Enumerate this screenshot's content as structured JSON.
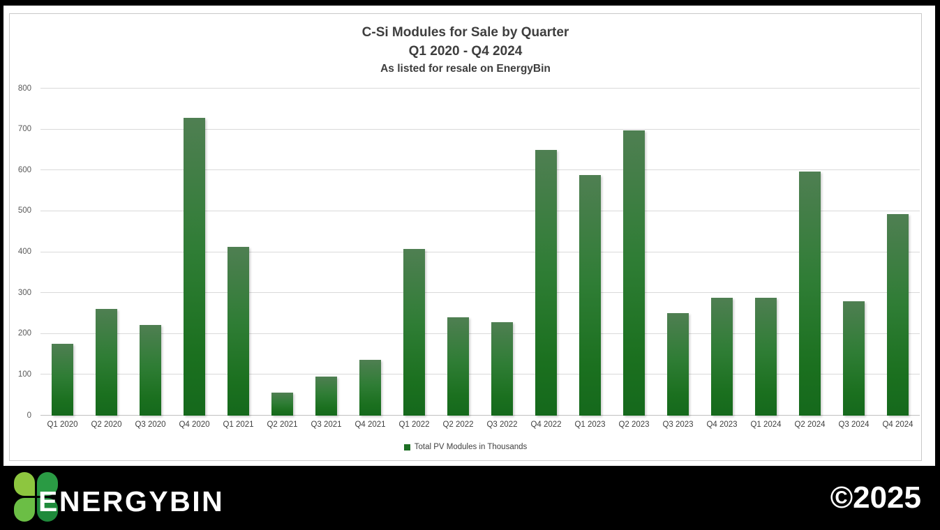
{
  "chart_data": {
    "type": "bar",
    "title": "C-Si Modules for Sale by Quarter",
    "subtitle": "Q1 2020 - Q4 2024",
    "subtitle2": "As listed for resale on EnergyBin",
    "categories": [
      "Q1 2020",
      "Q2 2020",
      "Q3 2020",
      "Q4 2020",
      "Q1 2021",
      "Q2 2021",
      "Q3 2021",
      "Q4 2021",
      "Q1 2022",
      "Q2 2022",
      "Q3 2022",
      "Q4 2022",
      "Q1 2023",
      "Q2 2023",
      "Q3 2023",
      "Q4 2023",
      "Q1 2024",
      "Q2 2024",
      "Q3 2024",
      "Q4 2024"
    ],
    "values": [
      175,
      261,
      222,
      728,
      413,
      57,
      95,
      137,
      407,
      241,
      228,
      650,
      588,
      697,
      250,
      289,
      289,
      597,
      280,
      493
    ],
    "xlabel": "",
    "ylabel": "",
    "ylim": [
      0,
      800
    ],
    "ytick_step": 100,
    "grid": true,
    "legend": {
      "label": "Total PV Modules in Thousands",
      "position": "bottom",
      "marker_color": "#1d6f24"
    },
    "bar_color_top": "#4f7f52",
    "bar_color_bottom": "#15691c"
  },
  "footer": {
    "brand": "ENERGYBIN",
    "copyright": "©2025",
    "leaf_colors": {
      "top_left": "#8dc63f",
      "top_right": "#2a9b44",
      "bottom_left": "#6bbe45",
      "bottom_right": "#1f8a3b"
    }
  }
}
